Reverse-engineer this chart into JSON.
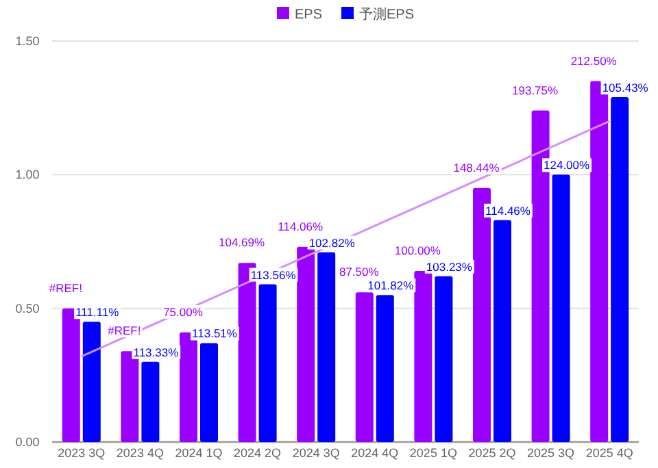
{
  "chart_data": {
    "type": "bar",
    "categories": [
      "2023 3Q",
      "2023 4Q",
      "2024 1Q",
      "2024 2Q",
      "2024 3Q",
      "2024 4Q",
      "2025 1Q",
      "2025 2Q",
      "2025 3Q",
      "2025 4Q"
    ],
    "series": [
      {
        "name": "EPS",
        "color": "#9900ff",
        "values": [
          0.5,
          0.34,
          0.41,
          0.67,
          0.73,
          0.56,
          0.64,
          0.95,
          1.24,
          1.35
        ]
      },
      {
        "name": "予測EPS",
        "color": "#0000ff",
        "values": [
          0.45,
          0.3,
          0.37,
          0.59,
          0.71,
          0.55,
          0.62,
          0.83,
          1.0,
          1.29
        ]
      },
      {
        "type": "line",
        "color": "#d58cff",
        "x": [
          "2023 3Q",
          "2025 4Q"
        ],
        "values": [
          0.32,
          1.2
        ]
      }
    ],
    "annotations": [
      {
        "text": "#REF!",
        "x": "2023 3Q",
        "y": 0.5
      },
      {
        "text": "111.11%",
        "x": "2023 3Q",
        "y": 0.45
      },
      {
        "text": "#REF!",
        "x": "2023 4Q",
        "y": 0.34
      },
      {
        "text": "113.33%",
        "x": "2023 4Q",
        "y": 0.3
      },
      {
        "text": "75.00%",
        "x": "2024 1Q",
        "y": 0.41
      },
      {
        "text": "113.51%",
        "x": "2024 1Q",
        "y": 0.37
      },
      {
        "text": "104.69%",
        "x": "2024 2Q",
        "y": 0.67
      },
      {
        "text": "113.56%",
        "x": "2024 2Q",
        "y": 0.59
      },
      {
        "text": "114.06%",
        "x": "2024 3Q",
        "y": 0.73
      },
      {
        "text": "102.82%",
        "x": "2024 3Q",
        "y": 0.71
      },
      {
        "text": "87.50%",
        "x": "2024 4Q",
        "y": 0.56
      },
      {
        "text": "101.82%",
        "x": "2024 4Q",
        "y": 0.55
      },
      {
        "text": "100.00%",
        "x": "2025 1Q",
        "y": 0.64
      },
      {
        "text": "103.23%",
        "x": "2025 1Q",
        "y": 0.62
      },
      {
        "text": "148.44%",
        "x": "2025 2Q",
        "y": 0.95
      },
      {
        "text": "114.46%",
        "x": "2025 2Q",
        "y": 0.83
      },
      {
        "text": "193.75%",
        "x": "2025 3Q",
        "y": 1.24
      },
      {
        "text": "124.00%",
        "x": "2025 3Q",
        "y": 1.0
      },
      {
        "text": "212.50%",
        "x": "2025 4Q",
        "y": 1.35
      },
      {
        "text": "105.43%",
        "x": "2025 4Q",
        "y": 1.29
      }
    ],
    "ylim": [
      0,
      1.5
    ],
    "yticks": [
      {
        "value": 0,
        "label": "0.00"
      },
      {
        "value": 0.5,
        "label": "0.50"
      },
      {
        "value": 1,
        "label": "1.00"
      },
      {
        "value": 1.5,
        "label": "1.50"
      }
    ],
    "grid": "y",
    "legend": "top"
  }
}
